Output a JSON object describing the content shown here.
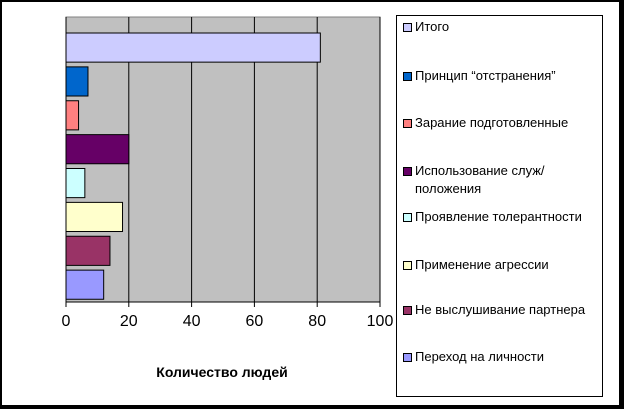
{
  "chart_data": {
    "type": "bar",
    "orientation": "horizontal",
    "xlabel": "Количество людей",
    "ylabel": "",
    "xlim": [
      0,
      100
    ],
    "x_ticks": [
      0,
      20,
      40,
      60,
      80,
      100
    ],
    "grid": "vertical",
    "plot_background": "#c0c0c0",
    "legend_position": "right",
    "bars_top_to_bottom": [
      {
        "name": "Итого",
        "value": 81,
        "color": "#ccccff"
      },
      {
        "name": "Принцип “отстранения”",
        "value": 7,
        "color": "#0066cc"
      },
      {
        "name": "Зарание подготовленные",
        "value": 4,
        "color": "#ff8080"
      },
      {
        "name": "Использование служ/положения",
        "value": 20,
        "color": "#660066"
      },
      {
        "name": "Проявление толерантности",
        "value": 6,
        "color": "#ccffff"
      },
      {
        "name": "Применение агрессии",
        "value": 18,
        "color": "#ffffcc"
      },
      {
        "name": "Не выслушивание партнера",
        "value": 14,
        "color": "#993366"
      },
      {
        "name": "Переход на личности",
        "value": 12,
        "color": "#9999ff"
      }
    ]
  }
}
